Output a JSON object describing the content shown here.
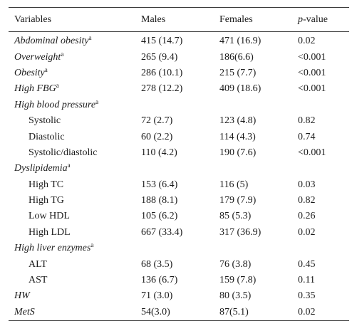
{
  "headers": {
    "variables": "Variables",
    "males": "Males",
    "females": "Females",
    "p_value_p": "p",
    "p_value_rest": "-value"
  },
  "rows": [
    {
      "label": "Abdominal obesity",
      "sup": "a",
      "males": "415 (14.7)",
      "females": "471 (16.9)",
      "p": "0.02",
      "kind": "cat"
    },
    {
      "label": "Overweight",
      "sup": "a",
      "males": "265 (9.4)",
      "females": "186(6.6)",
      "p": "<0.001",
      "kind": "cat"
    },
    {
      "label": "Obesity",
      "sup": "a",
      "males": "286 (10.1)",
      "females": "215 (7.7)",
      "p": "<0.001",
      "kind": "cat"
    },
    {
      "label": "High FBG",
      "sup": "a",
      "males": "278 (12.2)",
      "females": "409 (18.6)",
      "p": "<0.001",
      "kind": "cat"
    },
    {
      "label": "High blood pressure",
      "sup": "a",
      "males": "",
      "females": "",
      "p": "",
      "kind": "cat"
    },
    {
      "label": "Systolic",
      "sup": "",
      "males": "72 (2.7)",
      "females": "123 (4.8)",
      "p": "0.82",
      "kind": "sub"
    },
    {
      "label": "Diastolic",
      "sup": "",
      "males": "60 (2.2)",
      "females": "114 (4.3)",
      "p": "0.74",
      "kind": "sub"
    },
    {
      "label": "Systolic/diastolic",
      "sup": "",
      "males": "110 (4.2)",
      "females": "190 (7.6)",
      "p": "<0.001",
      "kind": "sub"
    },
    {
      "label": "Dyslipidemia",
      "sup": "a",
      "males": "",
      "females": "",
      "p": "",
      "kind": "cat"
    },
    {
      "label": "High TC",
      "sup": "",
      "males": "153 (6.4)",
      "females": "116 (5)",
      "p": "0.03",
      "kind": "sub"
    },
    {
      "label": "High TG",
      "sup": "",
      "males": "188 (8.1)",
      "females": "179 (7.9)",
      "p": "0.82",
      "kind": "sub"
    },
    {
      "label": "Low HDL",
      "sup": "",
      "males": "105 (6.2)",
      "females": "85 (5.3)",
      "p": "0.26",
      "kind": "sub"
    },
    {
      "label": "High LDL",
      "sup": "",
      "males": "667 (33.4)",
      "females": "317 (36.9)",
      "p": "0.02",
      "kind": "sub"
    },
    {
      "label": "High liver enzymes",
      "sup": "a",
      "males": "",
      "females": "",
      "p": "",
      "kind": "cat"
    },
    {
      "label": "ALT",
      "sup": "",
      "males": "68 (3.5)",
      "females": "76 (3.8)",
      "p": "0.45",
      "kind": "sub"
    },
    {
      "label": "AST",
      "sup": "",
      "males": "136 (6.7)",
      "females": "159 (7.8)",
      "p": "0.11",
      "kind": "sub"
    },
    {
      "label": "HW",
      "sup": "",
      "males": "71 (3.0)",
      "females": "80 (3.5)",
      "p": "0.35",
      "kind": "cat"
    },
    {
      "label": "MetS",
      "sup": "",
      "males": "54(3.0)",
      "females": "87(5.1)",
      "p": "0.02",
      "kind": "cat"
    }
  ]
}
